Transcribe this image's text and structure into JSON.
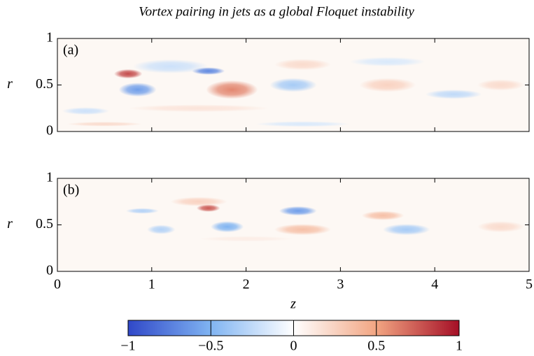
{
  "chart_data": [
    {
      "type": "heatmap",
      "title": "Vortex pairing in jets as a global Floquet instability",
      "label": "(a)",
      "ylabel": "r",
      "xlim": [
        0,
        5
      ],
      "ylim": [
        0,
        1
      ],
      "xticks": [
        0,
        1,
        2,
        3,
        4,
        5
      ],
      "yticks": [
        0,
        0.5,
        1
      ],
      "x": [
        0.75,
        0.85,
        1.6,
        1.85,
        1.2,
        2.5,
        2.6,
        3.5,
        3.5,
        4.2,
        4.7,
        0.3,
        1.5,
        2.6,
        0.5
      ],
      "y": [
        0.62,
        0.45,
        0.65,
        0.45,
        0.7,
        0.5,
        0.72,
        0.5,
        0.75,
        0.4,
        0.5,
        0.22,
        0.25,
        0.08,
        0.08
      ],
      "values": [
        0.8,
        -0.6,
        -0.7,
        0.6,
        -0.2,
        -0.35,
        0.2,
        0.25,
        -0.15,
        -0.25,
        0.2,
        -0.2,
        0.15,
        -0.15,
        0.2
      ],
      "widths": [
        0.3,
        0.4,
        0.35,
        0.55,
        0.8,
        0.5,
        0.6,
        0.6,
        0.8,
        0.6,
        0.5,
        0.5,
        1.5,
        1.0,
        0.8
      ],
      "heights": [
        0.1,
        0.15,
        0.08,
        0.2,
        0.15,
        0.15,
        0.12,
        0.15,
        0.1,
        0.1,
        0.12,
        0.08,
        0.08,
        0.06,
        0.05
      ]
    },
    {
      "type": "heatmap",
      "label": "(b)",
      "ylabel": "r",
      "xlabel": "z",
      "xlim": [
        0,
        5
      ],
      "ylim": [
        0,
        1
      ],
      "xticks": [
        0,
        1,
        2,
        3,
        4,
        5
      ],
      "yticks": [
        0,
        0.5,
        1
      ],
      "x": [
        0.9,
        1.1,
        1.6,
        1.5,
        1.8,
        2.55,
        2.6,
        3.45,
        3.7,
        4.7,
        2.0
      ],
      "y": [
        0.65,
        0.45,
        0.68,
        0.75,
        0.48,
        0.65,
        0.45,
        0.6,
        0.45,
        0.48,
        0.35
      ],
      "values": [
        -0.3,
        -0.3,
        0.75,
        0.25,
        -0.5,
        -0.6,
        0.35,
        0.35,
        -0.35,
        0.2,
        0.1
      ],
      "widths": [
        0.35,
        0.3,
        0.25,
        0.6,
        0.35,
        0.4,
        0.6,
        0.45,
        0.5,
        0.5,
        1.0
      ],
      "heights": [
        0.06,
        0.1,
        0.08,
        0.1,
        0.12,
        0.1,
        0.12,
        0.1,
        0.12,
        0.12,
        0.06
      ]
    },
    {
      "type": "colorbar",
      "xlim": [
        -1,
        1
      ],
      "xticks": [
        {
          "value": -1,
          "label": "−1"
        },
        {
          "value": -0.5,
          "label": "−0.5"
        },
        0,
        0.5,
        1
      ],
      "colors": [
        "#3048c8",
        "#80b4f2",
        "#ffffff",
        "#f2a582",
        "#a50f26"
      ]
    }
  ]
}
